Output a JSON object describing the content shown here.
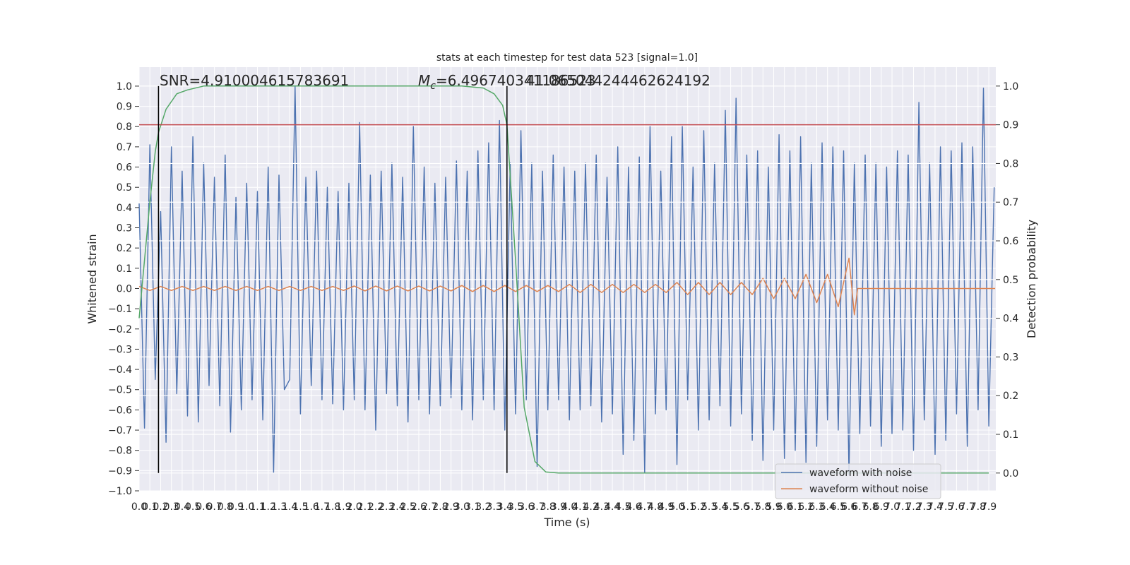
{
  "chart_data": {
    "type": "line",
    "title": "stats at each timestep for test data 523 [signal=1.0]",
    "xlabel": "Time (s)",
    "ylabel": "Whitened strain",
    "y2label": "Detection probability",
    "annotations": [
      {
        "text": "SNR=4.910004615783691"
      },
      {
        "symbol": "M",
        "subscript": "c",
        "text": "=6.496740341186523"
      },
      {
        "text": "41.065044244462624192"
      }
    ],
    "xlim": [
      0,
      7.965
    ],
    "ylim": [
      -1.0,
      1.094
    ],
    "y2lim": [
      -0.046,
      1.049
    ],
    "grid": true,
    "legend": "lower right",
    "xticks": [
      {
        "value": 0,
        "label": "0.0"
      },
      0.1,
      0.2,
      0.3,
      0.4,
      0.5,
      0.6,
      0.7,
      0.8,
      0.9,
      {
        "value": 1,
        "label": "1.0"
      },
      1.1,
      1.2,
      1.3,
      1.4,
      1.5,
      1.6,
      1.7,
      1.8,
      1.9,
      {
        "value": 2,
        "label": "2.0"
      },
      2.1,
      2.2,
      2.3,
      2.4,
      2.5,
      2.6,
      2.7,
      2.8,
      2.9,
      {
        "value": 3,
        "label": "3.0"
      },
      3.1,
      3.2,
      3.3,
      3.4,
      3.5,
      3.6,
      3.7,
      3.8,
      3.9,
      {
        "value": 4,
        "label": "4.0"
      },
      4.1,
      4.2,
      4.3,
      4.4,
      4.5,
      4.6,
      4.7,
      4.8,
      4.9,
      {
        "value": 5,
        "label": "5.0"
      },
      5.1,
      5.2,
      5.3,
      5.4,
      5.5,
      5.6,
      5.7,
      5.8,
      5.9,
      {
        "value": 6,
        "label": "6.0"
      },
      6.1,
      6.2,
      6.3,
      6.4,
      6.5,
      6.6,
      6.7,
      6.8,
      6.9,
      {
        "value": 7,
        "label": "7.0"
      },
      7.1,
      7.2,
      7.3,
      7.4,
      7.5,
      7.6,
      7.7,
      7.8,
      7.9
    ],
    "yticks": [
      {
        "value": -1.0,
        "label": "−1.0"
      },
      {
        "value": -0.9,
        "label": "−0.9"
      },
      {
        "value": -0.8,
        "label": "−0.8"
      },
      {
        "value": -0.7,
        "label": "−0.7"
      },
      {
        "value": -0.6,
        "label": "−0.6"
      },
      {
        "value": -0.5,
        "label": "−0.5"
      },
      {
        "value": -0.4,
        "label": "−0.4"
      },
      {
        "value": -0.3,
        "label": "−0.3"
      },
      {
        "value": -0.2,
        "label": "−0.2"
      },
      {
        "value": -0.1,
        "label": "−0.1"
      },
      {
        "value": 0,
        "label": "0.0"
      },
      0.1,
      0.2,
      0.3,
      0.4,
      0.5,
      0.6,
      0.7,
      0.8,
      0.9,
      {
        "value": 1,
        "label": "1.0"
      }
    ],
    "y2ticks": [
      {
        "value": 0,
        "label": "0.0"
      },
      0.1,
      0.2,
      0.3,
      0.4,
      0.5,
      0.6,
      0.7,
      0.8,
      0.9,
      {
        "value": 1,
        "label": "1.0"
      }
    ],
    "series": [
      {
        "name": "waveform with noise",
        "color": "#4c72b0",
        "x": [
          0,
          0.05,
          0.1,
          0.15,
          0.2,
          0.25,
          0.3,
          0.35,
          0.4,
          0.45,
          0.5,
          0.55,
          0.6,
          0.65,
          0.7,
          0.75,
          0.8,
          0.85,
          0.9,
          0.95,
          1,
          1.05,
          1.1,
          1.15,
          1.2,
          1.25,
          1.3,
          1.35,
          1.4,
          1.45,
          1.5,
          1.55,
          1.6,
          1.65,
          1.7,
          1.75,
          1.8,
          1.85,
          1.9,
          1.95,
          2,
          2.05,
          2.1,
          2.15,
          2.2,
          2.25,
          2.3,
          2.35,
          2.4,
          2.45,
          2.5,
          2.55,
          2.6,
          2.65,
          2.7,
          2.75,
          2.8,
          2.85,
          2.9,
          2.95,
          3,
          3.05,
          3.1,
          3.15,
          3.2,
          3.25,
          3.3,
          3.35,
          3.4,
          3.45,
          3.5,
          3.55,
          3.6,
          3.65,
          3.7,
          3.75,
          3.8,
          3.85,
          3.9,
          3.95,
          4,
          4.05,
          4.1,
          4.15,
          4.2,
          4.25,
          4.3,
          4.35,
          4.4,
          4.45,
          4.5,
          4.55,
          4.6,
          4.65,
          4.7,
          4.75,
          4.8,
          4.85,
          4.9,
          4.95,
          5,
          5.05,
          5.1,
          5.15,
          5.2,
          5.25,
          5.3,
          5.35,
          5.4,
          5.45,
          5.5,
          5.55,
          5.6,
          5.65,
          5.7,
          5.75,
          5.8,
          5.85,
          5.9,
          5.95,
          6,
          6.05,
          6.1,
          6.15,
          6.2,
          6.25,
          6.3,
          6.35,
          6.4,
          6.45,
          6.5,
          6.55,
          6.6,
          6.65,
          6.7,
          6.75,
          6.8,
          6.85,
          6.9,
          6.95,
          7,
          7.05,
          7.1,
          7.15,
          7.2,
          7.25,
          7.3,
          7.35,
          7.4,
          7.45,
          7.5,
          7.55,
          7.6,
          7.65,
          7.7,
          7.75,
          7.8,
          7.85,
          7.9,
          7.95
        ],
        "values": [
          0.42,
          -0.69,
          0.71,
          -0.45,
          0.38,
          -0.76,
          0.7,
          -0.52,
          0.58,
          -0.63,
          0.75,
          -0.66,
          0.62,
          -0.48,
          0.55,
          -0.58,
          0.66,
          -0.71,
          0.45,
          -0.6,
          0.52,
          -0.55,
          0.48,
          -0.65,
          0.6,
          -0.91,
          0.56,
          -0.5,
          -0.45,
          1.0,
          -0.62,
          0.55,
          -0.48,
          0.58,
          -0.55,
          0.5,
          -0.57,
          0.48,
          -0.6,
          0.52,
          -0.55,
          0.82,
          -0.6,
          0.56,
          -0.7,
          0.58,
          -0.52,
          0.62,
          -0.58,
          0.55,
          -0.66,
          0.8,
          -0.55,
          0.6,
          -0.62,
          0.52,
          -0.58,
          0.55,
          -0.54,
          0.63,
          -0.6,
          0.58,
          -0.65,
          0.68,
          -0.55,
          0.72,
          -0.6,
          0.83,
          -0.7,
          0.62,
          -0.62,
          0.78,
          -0.55,
          0.62,
          -0.88,
          0.58,
          -0.6,
          0.66,
          -0.55,
          0.6,
          -0.65,
          0.58,
          -0.6,
          0.62,
          -0.58,
          0.66,
          -0.66,
          0.55,
          -0.62,
          0.7,
          -0.82,
          0.6,
          -0.75,
          0.65,
          -0.91,
          0.8,
          -0.62,
          0.58,
          -0.6,
          0.75,
          -0.87,
          0.8,
          -0.55,
          0.6,
          -0.7,
          0.78,
          -0.65,
          0.62,
          -0.58,
          0.88,
          -0.68,
          0.94,
          -0.62,
          0.66,
          -0.75,
          0.68,
          -0.85,
          0.6,
          -0.7,
          0.76,
          -0.84,
          0.68,
          -0.8,
          0.75,
          -0.86,
          0.62,
          -0.78,
          0.72,
          -0.65,
          0.7,
          -0.7,
          0.68,
          -0.92,
          0.62,
          -0.72,
          0.66,
          -0.68,
          0.62,
          -0.78,
          0.6,
          -0.72,
          0.68,
          -0.7,
          0.66,
          -0.8,
          0.92,
          -0.65,
          0.62,
          -0.82,
          0.7,
          -0.75,
          0.68,
          -0.62,
          0.72,
          -0.78,
          0.7,
          -0.6,
          0.99,
          -0.68,
          0.5
        ]
      },
      {
        "name": "waveform without noise",
        "color": "#dd8452",
        "x": [
          0,
          0.1,
          0.2,
          0.3,
          0.4,
          0.5,
          0.6,
          0.7,
          0.8,
          0.9,
          1,
          1.1,
          1.2,
          1.3,
          1.4,
          1.5,
          1.6,
          1.7,
          1.8,
          1.9,
          2,
          2.1,
          2.2,
          2.3,
          2.4,
          2.5,
          2.6,
          2.7,
          2.8,
          2.9,
          3,
          3.1,
          3.2,
          3.3,
          3.4,
          3.5,
          3.6,
          3.7,
          3.8,
          3.9,
          4,
          4.1,
          4.2,
          4.3,
          4.4,
          4.5,
          4.6,
          4.7,
          4.8,
          4.9,
          5,
          5.1,
          5.2,
          5.3,
          5.4,
          5.5,
          5.6,
          5.7,
          5.8,
          5.9,
          6,
          6.1,
          6.2,
          6.3,
          6.4,
          6.5,
          6.6,
          6.65,
          6.68,
          7.96
        ],
        "values": [
          0.01,
          -0.01,
          0.01,
          -0.01,
          0.01,
          -0.01,
          0.01,
          -0.01,
          0.01,
          -0.01,
          0.01,
          -0.01,
          0.01,
          -0.01,
          0.01,
          -0.01,
          0.01,
          -0.01,
          0.01,
          -0.01,
          0.012,
          -0.012,
          0.012,
          -0.012,
          0.012,
          -0.012,
          0.012,
          -0.012,
          0.012,
          -0.012,
          0.015,
          -0.015,
          0.015,
          -0.015,
          0.015,
          -0.015,
          0.015,
          -0.015,
          0.015,
          -0.015,
          0.02,
          -0.02,
          0.02,
          -0.02,
          0.02,
          -0.02,
          0.02,
          -0.02,
          0.02,
          -0.02,
          0.03,
          -0.03,
          0.03,
          -0.03,
          0.03,
          -0.03,
          0.03,
          -0.03,
          0.05,
          -0.05,
          0.05,
          -0.05,
          0.07,
          -0.07,
          0.07,
          -0.09,
          0.15,
          -0.13,
          0,
          0
        ]
      }
    ],
    "detection": {
      "color": "#55a868",
      "axis": "y2",
      "x": [
        0,
        0.05,
        0.1,
        0.15,
        0.18,
        0.25,
        0.35,
        0.45,
        0.6,
        1.0,
        2.0,
        3.0,
        3.2,
        3.3,
        3.38,
        3.42,
        3.5,
        3.58,
        3.68,
        3.78,
        3.9,
        4.5,
        5.5,
        6.5,
        7.9
      ],
      "values": [
        0.4,
        0.55,
        0.7,
        0.83,
        0.88,
        0.94,
        0.98,
        0.99,
        1.0,
        1.0,
        1.0,
        1.0,
        0.995,
        0.98,
        0.95,
        0.9,
        0.55,
        0.17,
        0.03,
        0.003,
        0,
        0,
        0,
        0,
        0
      ]
    },
    "threshold": {
      "value": 0.9,
      "axis": "y2",
      "color": "#c44e52"
    },
    "vlines": {
      "x": [
        0.18,
        3.42
      ],
      "span": [
        0,
        1
      ],
      "axis": "y2",
      "color": "#000000"
    }
  }
}
